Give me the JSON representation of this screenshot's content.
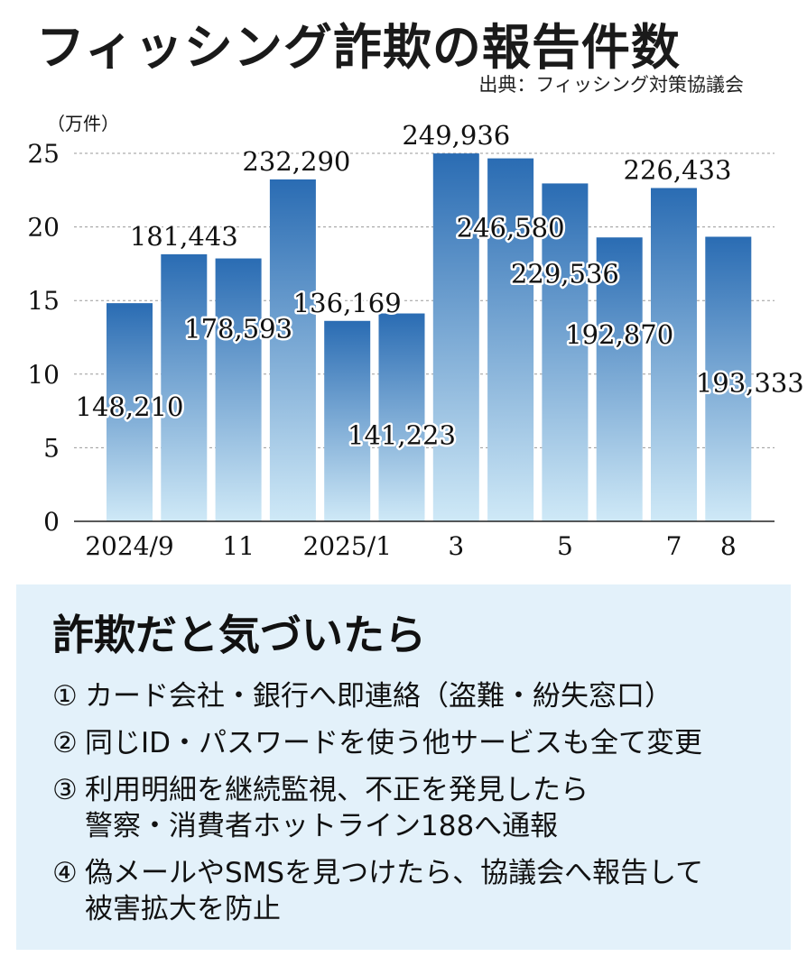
{
  "header": {
    "title": "フィッシング詐欺の報告件数",
    "source": "出典：フィッシング対策協議会"
  },
  "chart_data": {
    "type": "bar",
    "unit_label": "（万件）",
    "categories": [
      "2024/9",
      "",
      "11",
      "",
      "2025/1",
      "",
      "3",
      "",
      "5",
      "",
      "7",
      "8"
    ],
    "values": [
      148210,
      181443,
      178593,
      232290,
      136169,
      141223,
      249936,
      246580,
      229536,
      192870,
      226433,
      193333
    ],
    "value_labels": [
      "148,210",
      "181,443",
      "178,593",
      "232,290",
      "136,169",
      "141,223",
      "249,936",
      "246,580",
      "229,536",
      "192,870",
      "226,433",
      "193,333"
    ],
    "yticks": [
      "0",
      "5",
      "10",
      "15",
      "20",
      "25"
    ],
    "ytick_values": [
      0,
      50000,
      100000,
      150000,
      200000,
      250000
    ],
    "ylim": [
      0,
      250000
    ],
    "grid": true,
    "colors": {
      "bar_top": "#2a6cb3",
      "bar_bottom": "#cfe9f7"
    }
  },
  "tips": {
    "title": "詐欺だと気づいたら",
    "items": [
      {
        "num": "①",
        "text": "カード会社・銀行へ即連絡（盗難・紛失窓口）"
      },
      {
        "num": "②",
        "text": "同じID・パスワードを使う他サービスも全て変更"
      },
      {
        "num": "③",
        "text": "利用明細を継続監視、不正を発見したら\n警察・消費者ホットライン188へ通報"
      },
      {
        "num": "④",
        "text": "偽メールやSMSを見つけたら、協議会へ報告して\n被害拡大を防止"
      }
    ]
  }
}
